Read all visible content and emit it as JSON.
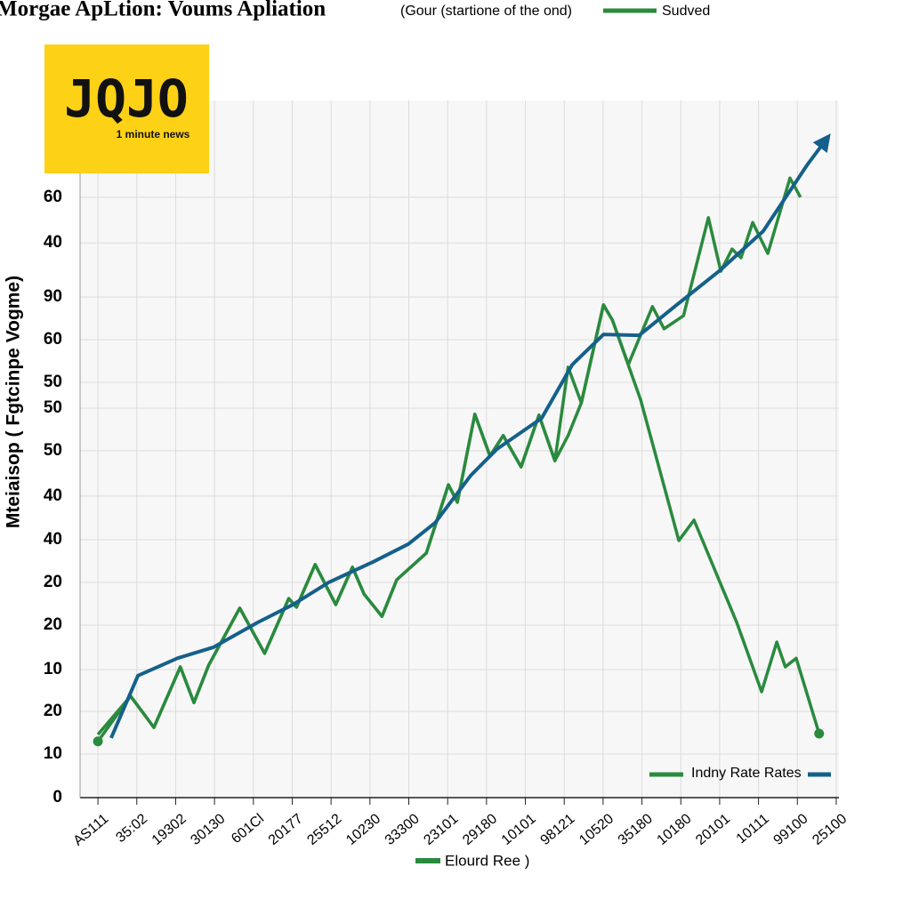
{
  "chart_data": {
    "type": "line",
    "title": "Morgae ApLtion: Voums Apliation",
    "subtitle": "(Gour (startione of the ond)",
    "y_label": "Mteiaisop ( Fgtcinpe Vogme)",
    "logo": {
      "text": "JQJO",
      "tagline": "1 minute news"
    },
    "xlim": [
      -0.46,
      19.07
    ],
    "xticks": [
      {
        "value": 0,
        "label": "AS111"
      },
      {
        "value": 1,
        "label": "35:02"
      },
      {
        "value": 2,
        "label": "19302"
      },
      {
        "value": 3,
        "label": "30130"
      },
      {
        "value": 4,
        "label": "601Cl"
      },
      {
        "value": 5,
        "label": "20177"
      },
      {
        "value": 6,
        "label": "25512"
      },
      {
        "value": 7,
        "label": "10230"
      },
      {
        "value": 8,
        "label": "33300"
      },
      {
        "value": 9,
        "label": "23101"
      },
      {
        "value": 10,
        "label": "29180"
      },
      {
        "value": 11,
        "label": "10101"
      },
      {
        "value": 12,
        "label": "98121"
      },
      {
        "value": 13,
        "label": "10520"
      },
      {
        "value": 14,
        "label": "35180"
      },
      {
        "value": 15,
        "label": "10180"
      },
      {
        "value": 16,
        "label": "20101"
      },
      {
        "value": 17,
        "label": "10111"
      },
      {
        "value": 18,
        "label": "99100"
      },
      {
        "value": 19,
        "label": "25100"
      }
    ],
    "ylim": [
      0,
      160
    ],
    "yticks": [
      0,
      10,
      {
        "value": 19.8,
        "label": "20"
      },
      {
        "value": 29.4,
        "label": "10"
      },
      {
        "value": 39.6,
        "label": "20"
      },
      {
        "value": 49.4,
        "label": "20"
      },
      {
        "value": 59.2,
        "label": "40"
      },
      {
        "value": 69.2,
        "label": "40"
      },
      {
        "value": 79.6,
        "label": "50"
      },
      {
        "value": 89.4,
        "label": "50"
      },
      {
        "value": 95.3,
        "label": "50"
      },
      {
        "value": 105.1,
        "label": "60"
      },
      {
        "value": 114.9,
        "label": "90"
      },
      {
        "value": 127.3,
        "label": "40"
      },
      {
        "value": 137.8,
        "label": "60"
      }
    ],
    "grid": true,
    "series": [
      {
        "name": "Sudved",
        "color": "#2a8a3e",
        "x": [
          0,
          0.84,
          1.44,
          2.12,
          2.47,
          2.85,
          3.65,
          4.29,
          4.91,
          5.11,
          5.59,
          6.12,
          6.55,
          6.85,
          7.31,
          7.69,
          8.45,
          9.02,
          9.25,
          9.7,
          10.09,
          10.43,
          10.89,
          11.35,
          11.76,
          12.1,
          12.44,
          13.01,
          13.24,
          13.65,
          14.27,
          14.57,
          15.07,
          15.71,
          16.03,
          16.32,
          16.55,
          16.85,
          17.24,
          17.81,
          18.08
        ],
        "values": [
          14.5,
          23.3,
          16.1,
          30.0,
          21.8,
          30.4,
          43.5,
          33.1,
          45.7,
          43.7,
          53.5,
          44.3,
          52.9,
          46.7,
          41.6,
          50.0,
          56.1,
          71.8,
          67.8,
          88.0,
          78.4,
          83.1,
          75.9,
          87.8,
          77.3,
          98.8,
          90.6,
          113.1,
          109.6,
          99.4,
          112.7,
          107.6,
          110.6,
          133.1,
          120.8,
          125.9,
          123.9,
          132.0,
          124.9,
          142.2,
          137.8
        ]
      },
      {
        "name": "Elourd Ree )",
        "color": "#2a8a3e",
        "x": [
          0,
          0.84,
          1.44,
          2.12,
          2.47,
          2.85,
          3.65,
          4.29,
          4.91,
          5.11,
          5.59,
          6.12,
          6.55,
          6.85,
          7.31,
          7.69,
          8.45,
          9.02,
          9.25,
          9.7,
          10.09,
          10.43,
          10.89,
          11.35,
          11.76,
          12.1,
          12.44,
          13.01,
          13.24,
          13.97,
          14.95,
          15.34,
          16.44,
          17.08,
          17.47,
          17.69,
          17.97,
          18.56
        ],
        "values": [
          12.9,
          23.3,
          16.1,
          30.0,
          21.8,
          30.4,
          43.5,
          33.1,
          45.7,
          43.7,
          53.5,
          44.3,
          52.9,
          46.7,
          41.6,
          50.0,
          56.1,
          71.8,
          67.8,
          88.0,
          78.4,
          83.1,
          75.9,
          87.8,
          77.3,
          83.1,
          90.6,
          113.1,
          109.6,
          91.2,
          59.0,
          63.7,
          40.2,
          24.3,
          35.7,
          30.0,
          32.0,
          14.7
        ]
      },
      {
        "name": "Indny Rate Rates",
        "color": "#15608a",
        "x": [
          0.34,
          1.03,
          2.05,
          2.97,
          4.11,
          5.02,
          5.94,
          7.08,
          7.99,
          8.68,
          9.59,
          10.27,
          11.42,
          12.21,
          13.01,
          13.93,
          14.84,
          15.98,
          17.12,
          18.26,
          18.72
        ],
        "values": [
          13.7,
          28.0,
          32.0,
          34.5,
          40.2,
          44.3,
          49.4,
          54.1,
          58.2,
          63.1,
          73.9,
          80.0,
          87.1,
          99.4,
          106.3,
          106.1,
          112.7,
          120.8,
          130.0,
          145.3,
          150.8
        ]
      }
    ]
  }
}
